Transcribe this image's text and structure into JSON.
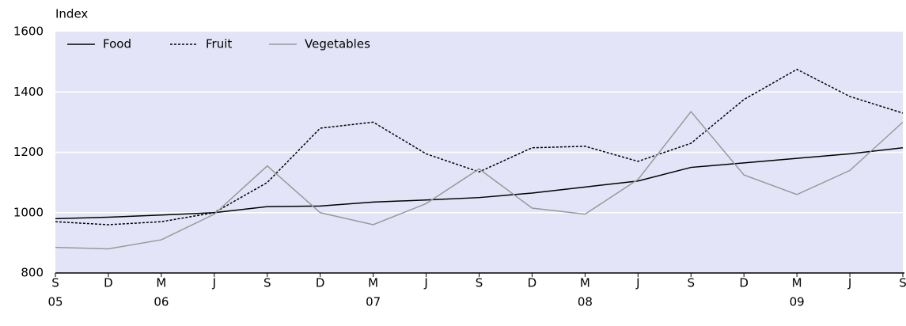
{
  "chart_data": {
    "type": "line",
    "y_label": "Index",
    "categories": [
      "S",
      "D",
      "M",
      "J",
      "S",
      "D",
      "M",
      "J",
      "S",
      "D",
      "M",
      "J",
      "S",
      "D",
      "M",
      "J",
      "S"
    ],
    "x_years": [
      "05",
      null,
      "06",
      null,
      null,
      null,
      "07",
      null,
      null,
      null,
      "08",
      null,
      null,
      null,
      "09",
      null,
      null
    ],
    "series": [
      {
        "name": "Food",
        "color": "#000000",
        "dash": "solid",
        "values": [
          980,
          985,
          992,
          1000,
          1020,
          1022,
          1035,
          1042,
          1050,
          1065,
          1085,
          1105,
          1150,
          1165,
          1180,
          1195,
          1215
        ]
      },
      {
        "name": "Fruit",
        "color": "#000000",
        "dash": "dotted",
        "values": [
          970,
          960,
          970,
          1000,
          1100,
          1280,
          1300,
          1195,
          1135,
          1215,
          1220,
          1170,
          1230,
          1375,
          1475,
          1385,
          1330
        ]
      },
      {
        "name": "Vegetables",
        "color": "#999999",
        "dash": "solid",
        "values": [
          885,
          880,
          910,
          995,
          1155,
          1000,
          960,
          1030,
          1145,
          1015,
          995,
          1110,
          1335,
          1125,
          1060,
          1140,
          1300
        ]
      }
    ],
    "ylim": [
      800,
      1600
    ],
    "yticks": [
      800,
      1000,
      1200,
      1400,
      1600
    ],
    "grid": true,
    "background": "#e4e4f8",
    "legend": "top-left"
  }
}
